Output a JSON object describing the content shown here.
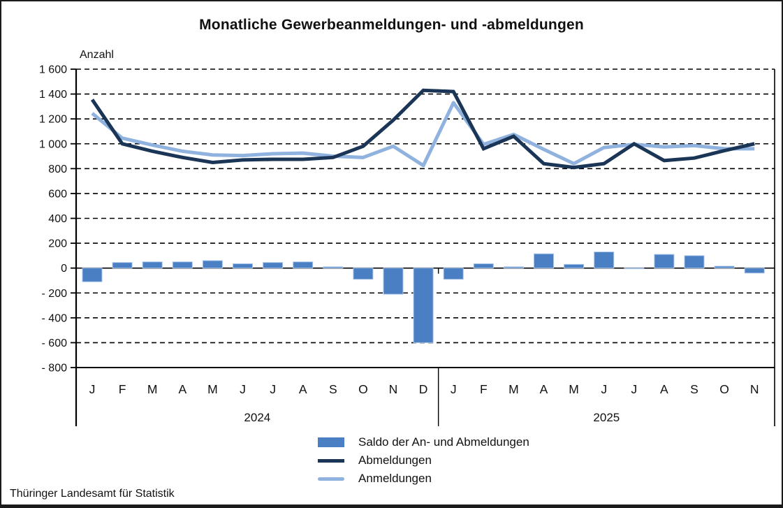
{
  "header": {
    "title": "Monatliche Gewerbeanmeldungen- und -abmeldungen"
  },
  "footer": {
    "source": "Thüringer Landesamt für Statistik"
  },
  "chart_data": {
    "type": "bar",
    "subtype": "combined-bar-and-line",
    "title": "Monatliche Gewerbeanmeldungen- und -abmeldungen",
    "ylabel": "Anzahl",
    "ylim": [
      -800,
      1600
    ],
    "y_step": 200,
    "grid": "dashed-horizontal",
    "legend_position": "bottom-center",
    "y_tick_labels": [
      "1 600",
      "1 400",
      "1 200",
      "1 000",
      "800",
      "600",
      "400",
      "200",
      "0",
      "- 200",
      "- 400",
      "- 600",
      "- 800"
    ],
    "x": {
      "months_2024": [
        "J",
        "F",
        "M",
        "A",
        "M",
        "J",
        "J",
        "A",
        "S",
        "O",
        "N",
        "D"
      ],
      "months_2025": [
        "J",
        "F",
        "M",
        "A",
        "M",
        "J",
        "J",
        "A",
        "S",
        "O",
        "N"
      ],
      "year_labels": [
        "2024",
        "2025"
      ]
    },
    "series": [
      {
        "name": "Saldo der An- und Abmeldungen",
        "type": "bar",
        "color": "#4a7fc4",
        "edge_color": "#a9c5e8",
        "values": [
          -110,
          45,
          50,
          50,
          60,
          35,
          45,
          50,
          10,
          -90,
          -210,
          -600,
          -90,
          35,
          10,
          115,
          30,
          130,
          -5,
          110,
          100,
          15,
          -40
        ]
      },
      {
        "name": "Abmeldungen",
        "type": "line",
        "color": "#1b3557",
        "values": [
          1355,
          1000,
          940,
          890,
          850,
          870,
          875,
          875,
          890,
          980,
          1190,
          1430,
          1420,
          960,
          1060,
          840,
          810,
          840,
          1000,
          865,
          885,
          945,
          1000
        ]
      },
      {
        "name": "Anmeldungen",
        "type": "line",
        "color": "#8fb2de",
        "values": [
          1245,
          1045,
          990,
          940,
          910,
          905,
          920,
          925,
          900,
          890,
          980,
          825,
          1330,
          995,
          1075,
          955,
          840,
          970,
          995,
          975,
          985,
          960,
          960
        ]
      }
    ]
  }
}
